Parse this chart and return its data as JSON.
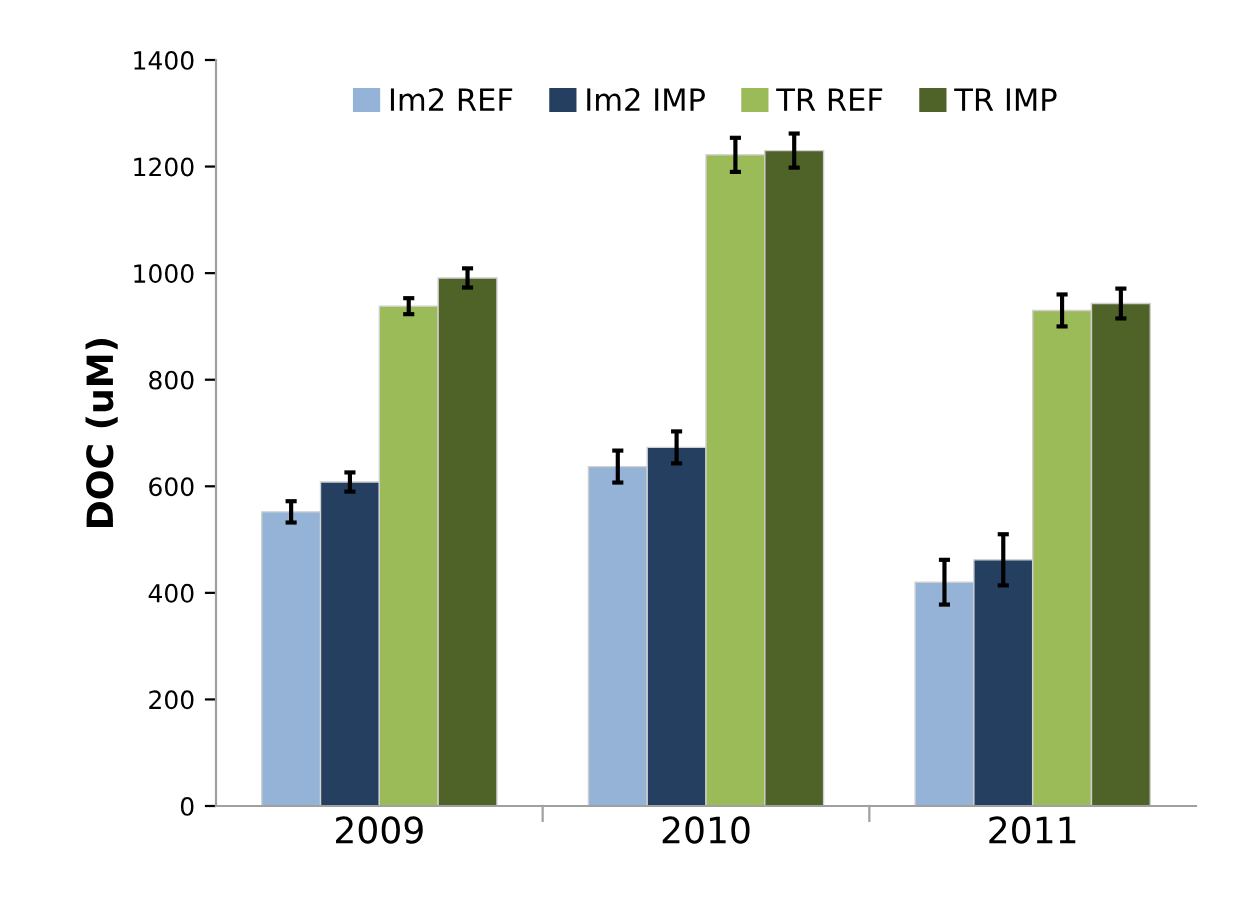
{
  "chart_data": {
    "type": "bar",
    "ylabel": "DOC (uM)",
    "categories": [
      "2009",
      "2010",
      "2011"
    ],
    "series": [
      {
        "name": "Im2 REF",
        "color": "#95b3d7",
        "values": [
          552,
          637,
          420
        ],
        "errors": [
          20,
          30,
          42
        ]
      },
      {
        "name": "Im2 IMP",
        "color": "#243f60",
        "values": [
          608,
          673,
          462
        ],
        "errors": [
          18,
          30,
          48
        ]
      },
      {
        "name": "TR REF",
        "color": "#9bbb59",
        "values": [
          938,
          1222,
          930
        ],
        "errors": [
          15,
          32,
          30
        ]
      },
      {
        "name": "TR IMP",
        "color": "#4f6228",
        "values": [
          991,
          1230,
          943
        ],
        "errors": [
          18,
          32,
          28
        ]
      }
    ],
    "ylim": [
      0,
      1400
    ],
    "yticks": [
      0,
      200,
      400,
      600,
      800,
      1000,
      1200,
      1400
    ],
    "grid": false,
    "legend": "top"
  }
}
